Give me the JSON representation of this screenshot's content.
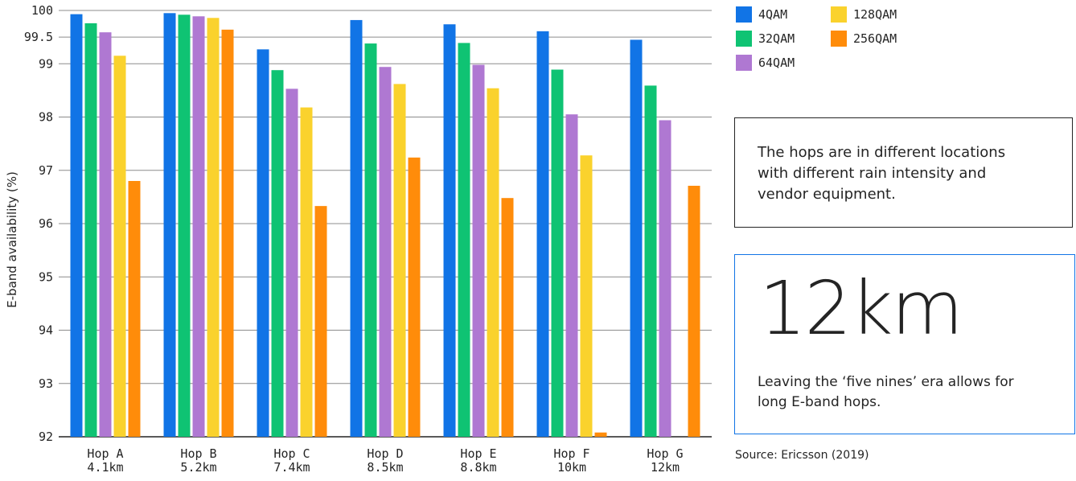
{
  "chart_data": {
    "type": "bar",
    "title": "",
    "xlabel": "",
    "ylabel": "E-band availability (%)",
    "ylim": [
      92,
      100
    ],
    "yticks": [
      92,
      93,
      94,
      95,
      96,
      97,
      98,
      99,
      99.5,
      100
    ],
    "grid": true,
    "legend_position": "top-right",
    "categories": [
      [
        "Hop A",
        "4.1km"
      ],
      [
        "Hop B",
        "5.2km"
      ],
      [
        "Hop C",
        "7.4km"
      ],
      [
        "Hop D",
        "8.5km"
      ],
      [
        "Hop E",
        "8.8km"
      ],
      [
        "Hop F",
        "10km"
      ],
      [
        "Hop G",
        "12km"
      ]
    ],
    "series": [
      {
        "name": "4QAM",
        "color": "#1174e6",
        "values": [
          99.93,
          99.95,
          99.27,
          99.82,
          99.74,
          99.61,
          99.45
        ]
      },
      {
        "name": "32QAM",
        "color": "#0fc373",
        "values": [
          99.76,
          99.92,
          98.88,
          99.38,
          99.39,
          98.89,
          98.59
        ]
      },
      {
        "name": "64QAM",
        "color": "#af78d2",
        "values": [
          99.59,
          99.89,
          98.53,
          98.94,
          98.98,
          98.05,
          97.94
        ]
      },
      {
        "name": "128QAM",
        "color": "#fad22d",
        "values": [
          99.15,
          99.86,
          98.18,
          98.62,
          98.54,
          97.28,
          null
        ]
      },
      {
        "name": "256QAM",
        "color": "#ff8c0a",
        "values": [
          96.8,
          99.64,
          96.33,
          97.24,
          96.48,
          92.08,
          96.71
        ]
      }
    ]
  },
  "legend": [
    {
      "label": "4QAM",
      "color": "#1174e6"
    },
    {
      "label": "32QAM",
      "color": "#0fc373"
    },
    {
      "label": "64QAM",
      "color": "#af78d2"
    },
    {
      "label": "128QAM",
      "color": "#fad22d"
    },
    {
      "label": "256QAM",
      "color": "#ff8c0a"
    }
  ],
  "note": {
    "text": "The hops are in different locations with different rain intensity and vendor equipment."
  },
  "callout": {
    "big": "12km",
    "text": "Leaving the ‘five nines’ era allows for long E-band hops."
  },
  "source": "Source: Ericsson (2019)",
  "colors": {
    "grid": "#8c8c8c",
    "axis": "#242424",
    "callout_border": "#1174e6"
  }
}
